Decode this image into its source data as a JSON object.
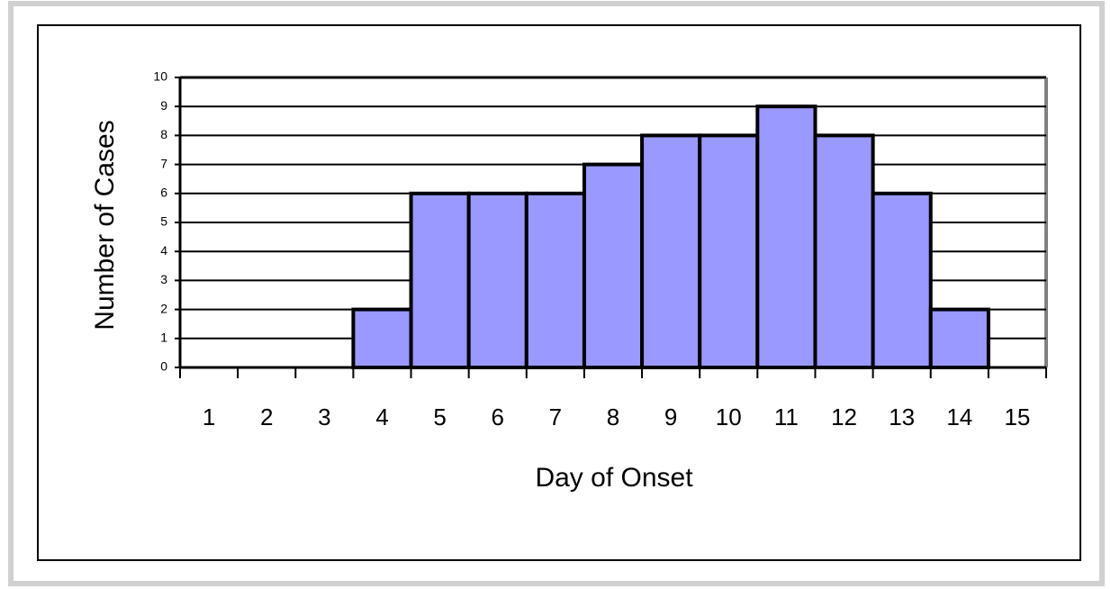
{
  "chart_data": {
    "type": "bar",
    "x_label": "Day of Onset",
    "y_label": "Number of Cases",
    "categories": [
      "1",
      "2",
      "3",
      "4",
      "5",
      "6",
      "7",
      "8",
      "9",
      "10",
      "11",
      "12",
      "13",
      "14",
      "15"
    ],
    "values": [
      0,
      0,
      0,
      2,
      6,
      6,
      6,
      7,
      8,
      8,
      9,
      8,
      6,
      2,
      0
    ],
    "color": "#9999ff",
    "ylim": [
      0,
      10
    ],
    "yticks": [
      0,
      1,
      2,
      3,
      4,
      5,
      6,
      7,
      8,
      9,
      10
    ],
    "grid": true
  }
}
